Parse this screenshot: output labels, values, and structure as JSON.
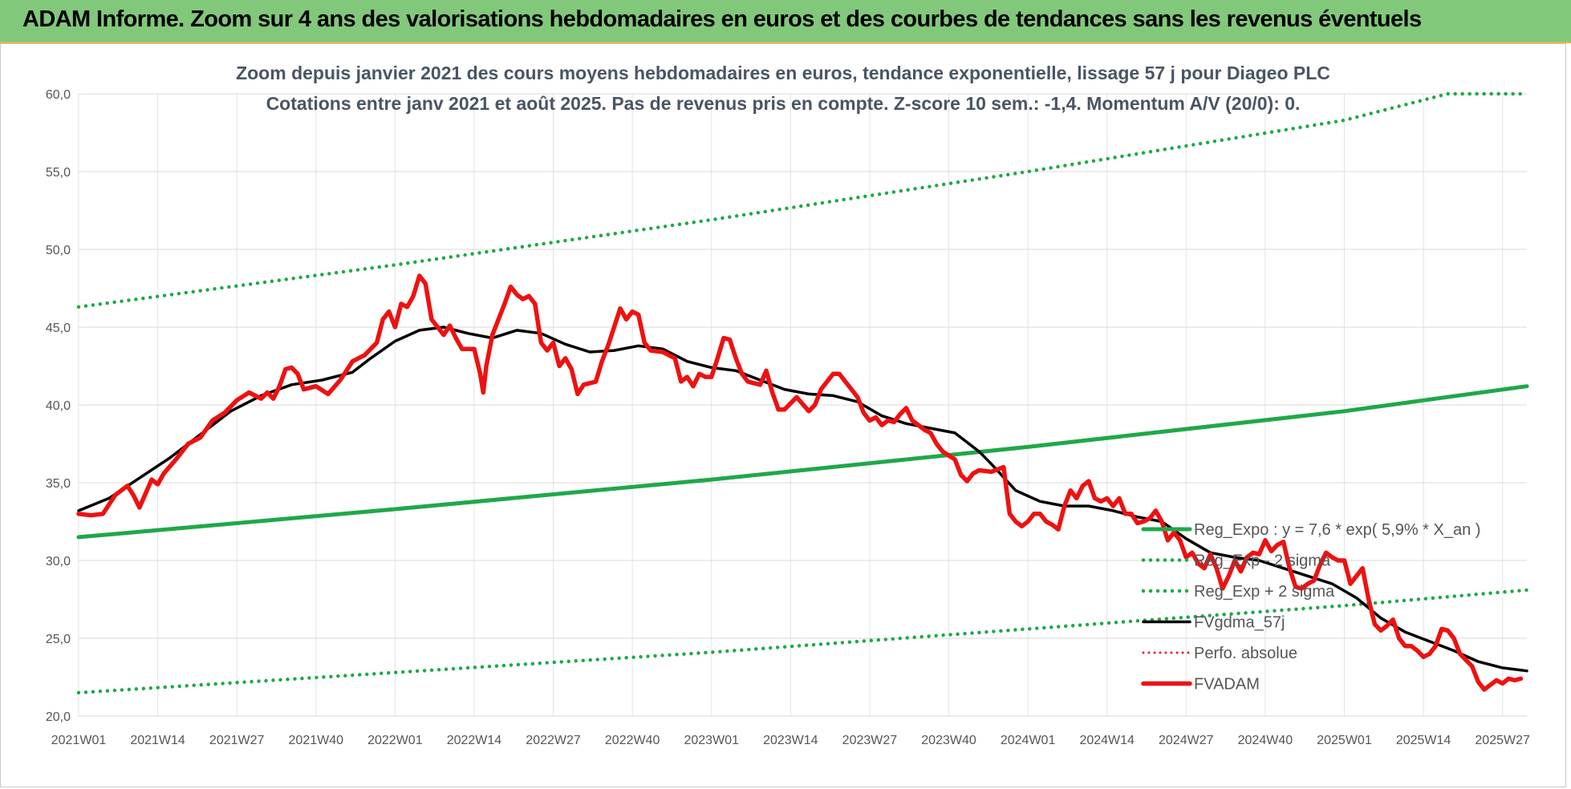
{
  "banner": {
    "title": "ADAM Informe. Zoom sur 4 ans des valorisations hebdomadaires en euros et des courbes de tendances sans les revenus éventuels"
  },
  "colors": {
    "banner": "#82c87a",
    "trend": "#1fa84a",
    "smooth": "#000000",
    "price": "#ee1111",
    "perfo": "#dd2222"
  },
  "chart_data": {
    "type": "line",
    "title": "Zoom depuis janvier 2021 des cours moyens hebdomadaires en euros, tendance exponentielle, lissage 57 j pour Diageo PLC",
    "subtitle": "Cotations entre janv 2021 et août 2025.  Pas de revenus pris en compte. Z-score 10 sem.: -1,4. Momentum A/V (20/0): 0.",
    "xlabel": "",
    "ylabel": "",
    "ylim": [
      20,
      60
    ],
    "y_ticks": [
      "20,0",
      "25,0",
      "30,0",
      "35,0",
      "40,0",
      "45,0",
      "50,0",
      "55,0",
      "60,0"
    ],
    "x_ticks": [
      "2021W01",
      "2021W14",
      "2021W27",
      "2021W40",
      "2022W01",
      "2022W14",
      "2022W27",
      "2022W40",
      "2023W01",
      "2023W14",
      "2023W27",
      "2023W40",
      "2024W01",
      "2024W14",
      "2024W27",
      "2024W40",
      "2025W01",
      "2025W14",
      "2025W27"
    ],
    "x_range_weeks": [
      0,
      238
    ],
    "grid": true,
    "legend_position": "bottom-right",
    "series": [
      {
        "name": "Reg_Expo : y = 7,6 * exp( 5,9% *  X_an )",
        "style": "solid",
        "color": "#1fa84a",
        "points": [
          [
            0,
            31.5
          ],
          [
            52,
            33.3
          ],
          [
            104,
            35.2
          ],
          [
            156,
            37.3
          ],
          [
            208,
            39.6
          ],
          [
            238,
            41.2
          ]
        ]
      },
      {
        "name": "Reg_Exp - 2 sigma",
        "style": "dotted",
        "color": "#1fa84a",
        "points": [
          [
            0,
            21.5
          ],
          [
            52,
            22.8
          ],
          [
            104,
            24.1
          ],
          [
            156,
            25.6
          ],
          [
            208,
            27.1
          ],
          [
            238,
            28.1
          ]
        ]
      },
      {
        "name": "Reg_Exp + 2 sigma",
        "style": "dotted",
        "color": "#1fa84a",
        "points": [
          [
            0,
            46.3
          ],
          [
            52,
            49.0
          ],
          [
            104,
            51.9
          ],
          [
            156,
            55.0
          ],
          [
            208,
            58.3
          ],
          [
            225,
            60.0
          ],
          [
            238,
            60.0
          ]
        ]
      },
      {
        "name": "FVgdma_57j",
        "style": "solid",
        "color": "#000000",
        "points": [
          [
            0,
            33.2
          ],
          [
            5,
            34.0
          ],
          [
            10,
            35.3
          ],
          [
            15,
            36.6
          ],
          [
            20,
            38.1
          ],
          [
            25,
            39.6
          ],
          [
            30,
            40.6
          ],
          [
            35,
            41.3
          ],
          [
            40,
            41.6
          ],
          [
            45,
            42.1
          ],
          [
            48,
            43.0
          ],
          [
            52,
            44.1
          ],
          [
            56,
            44.8
          ],
          [
            60,
            45.0
          ],
          [
            64,
            44.6
          ],
          [
            68,
            44.3
          ],
          [
            72,
            44.8
          ],
          [
            76,
            44.6
          ],
          [
            80,
            43.9
          ],
          [
            84,
            43.4
          ],
          [
            88,
            43.5
          ],
          [
            92,
            43.8
          ],
          [
            96,
            43.6
          ],
          [
            100,
            42.8
          ],
          [
            104,
            42.4
          ],
          [
            108,
            42.2
          ],
          [
            112,
            41.6
          ],
          [
            116,
            41.0
          ],
          [
            120,
            40.7
          ],
          [
            124,
            40.6
          ],
          [
            128,
            40.2
          ],
          [
            132,
            39.3
          ],
          [
            136,
            38.8
          ],
          [
            140,
            38.5
          ],
          [
            144,
            38.2
          ],
          [
            148,
            37.0
          ],
          [
            150,
            36.2
          ],
          [
            154,
            34.5
          ],
          [
            158,
            33.8
          ],
          [
            162,
            33.5
          ],
          [
            166,
            33.5
          ],
          [
            170,
            33.2
          ],
          [
            174,
            32.8
          ],
          [
            178,
            32.5
          ],
          [
            182,
            31.4
          ],
          [
            186,
            30.5
          ],
          [
            190,
            30.2
          ],
          [
            194,
            30.0
          ],
          [
            198,
            29.5
          ],
          [
            202,
            29.0
          ],
          [
            206,
            28.5
          ],
          [
            210,
            27.6
          ],
          [
            214,
            26.3
          ],
          [
            218,
            25.4
          ],
          [
            222,
            24.8
          ],
          [
            226,
            24.2
          ],
          [
            230,
            23.5
          ],
          [
            234,
            23.1
          ],
          [
            238,
            22.9
          ]
        ]
      },
      {
        "name": "Perfo. absolue",
        "style": "dotted",
        "color": "#dd2222",
        "points": []
      },
      {
        "name": "FVADAM",
        "style": "solid",
        "color": "#ee1111",
        "points": [
          [
            0,
            33.0
          ],
          [
            2,
            32.9
          ],
          [
            4,
            33.0
          ],
          [
            6,
            34.2
          ],
          [
            8,
            34.8
          ],
          [
            9,
            34.2
          ],
          [
            10,
            33.4
          ],
          [
            12,
            35.2
          ],
          [
            13,
            34.9
          ],
          [
            14,
            35.6
          ],
          [
            16,
            36.5
          ],
          [
            18,
            37.5
          ],
          [
            20,
            37.9
          ],
          [
            22,
            39.0
          ],
          [
            24,
            39.5
          ],
          [
            26,
            40.3
          ],
          [
            28,
            40.8
          ],
          [
            30,
            40.4
          ],
          [
            31,
            40.8
          ],
          [
            32,
            40.4
          ],
          [
            33,
            41.2
          ],
          [
            34,
            42.3
          ],
          [
            35,
            42.4
          ],
          [
            36,
            42.0
          ],
          [
            37,
            41.0
          ],
          [
            39,
            41.2
          ],
          [
            41,
            40.7
          ],
          [
            43,
            41.6
          ],
          [
            45,
            42.8
          ],
          [
            47,
            43.2
          ],
          [
            49,
            44.0
          ],
          [
            50,
            45.5
          ],
          [
            51,
            46.0
          ],
          [
            52,
            45.0
          ],
          [
            53,
            46.5
          ],
          [
            54,
            46.3
          ],
          [
            55,
            47.0
          ],
          [
            56,
            48.3
          ],
          [
            57,
            47.8
          ],
          [
            58,
            45.5
          ],
          [
            60,
            44.5
          ],
          [
            61,
            45.1
          ],
          [
            62,
            44.3
          ],
          [
            63,
            43.6
          ],
          [
            65,
            43.6
          ],
          [
            66,
            42.0
          ],
          [
            66.5,
            40.8
          ],
          [
            67,
            42.5
          ],
          [
            68,
            44.5
          ],
          [
            69,
            45.5
          ],
          [
            70,
            46.5
          ],
          [
            71,
            47.6
          ],
          [
            72,
            47.1
          ],
          [
            73,
            46.8
          ],
          [
            74,
            47.0
          ],
          [
            75,
            46.5
          ],
          [
            76,
            44.0
          ],
          [
            77,
            43.5
          ],
          [
            78,
            44.0
          ],
          [
            79,
            42.5
          ],
          [
            80,
            43.0
          ],
          [
            81,
            42.3
          ],
          [
            82,
            40.7
          ],
          [
            83,
            41.3
          ],
          [
            85,
            41.5
          ],
          [
            86,
            42.8
          ],
          [
            87,
            43.8
          ],
          [
            88,
            45.0
          ],
          [
            89,
            46.2
          ],
          [
            90,
            45.5
          ],
          [
            91,
            46.0
          ],
          [
            92,
            45.8
          ],
          [
            93,
            44.0
          ],
          [
            94,
            43.5
          ],
          [
            96,
            43.4
          ],
          [
            98,
            43.0
          ],
          [
            99,
            41.5
          ],
          [
            100,
            41.8
          ],
          [
            101,
            41.2
          ],
          [
            102,
            42.0
          ],
          [
            103,
            41.8
          ],
          [
            104,
            41.8
          ],
          [
            105,
            43.0
          ],
          [
            106,
            44.3
          ],
          [
            107,
            44.2
          ],
          [
            108,
            43.0
          ],
          [
            109,
            42.0
          ],
          [
            110,
            41.5
          ],
          [
            112,
            41.3
          ],
          [
            113,
            42.2
          ],
          [
            114,
            40.8
          ],
          [
            115,
            39.7
          ],
          [
            116,
            39.7
          ],
          [
            118,
            40.5
          ],
          [
            120,
            39.6
          ],
          [
            121,
            40.0
          ],
          [
            122,
            41.0
          ],
          [
            123,
            41.5
          ],
          [
            124,
            42.0
          ],
          [
            125,
            42.0
          ],
          [
            126,
            41.5
          ],
          [
            127,
            41.0
          ],
          [
            128,
            40.5
          ],
          [
            129,
            39.5
          ],
          [
            130,
            39.0
          ],
          [
            131,
            39.2
          ],
          [
            132,
            38.7
          ],
          [
            133,
            39.0
          ],
          [
            134,
            38.9
          ],
          [
            135,
            39.4
          ],
          [
            136,
            39.8
          ],
          [
            137,
            39.0
          ],
          [
            138,
            38.7
          ],
          [
            139,
            38.4
          ],
          [
            140,
            38.2
          ],
          [
            141,
            37.5
          ],
          [
            142,
            37.0
          ],
          [
            144,
            36.5
          ],
          [
            145,
            35.5
          ],
          [
            146,
            35.1
          ],
          [
            147,
            35.6
          ],
          [
            148,
            35.8
          ],
          [
            150,
            35.7
          ],
          [
            152,
            36.0
          ],
          [
            153,
            33.0
          ],
          [
            154,
            32.5
          ],
          [
            155,
            32.2
          ],
          [
            156,
            32.5
          ],
          [
            157,
            33.0
          ],
          [
            158,
            33.0
          ],
          [
            159,
            32.5
          ],
          [
            160,
            32.3
          ],
          [
            161,
            32.0
          ],
          [
            162,
            33.5
          ],
          [
            163,
            34.5
          ],
          [
            164,
            34.0
          ],
          [
            165,
            34.8
          ],
          [
            166,
            35.1
          ],
          [
            167,
            34.0
          ],
          [
            168,
            33.8
          ],
          [
            169,
            34.0
          ],
          [
            170,
            33.5
          ],
          [
            171,
            34.0
          ],
          [
            172,
            33.0
          ],
          [
            173,
            33.0
          ],
          [
            174,
            32.4
          ],
          [
            175,
            32.5
          ],
          [
            176,
            32.7
          ],
          [
            177,
            33.2
          ],
          [
            178,
            32.5
          ],
          [
            179,
            31.3
          ],
          [
            180,
            31.8
          ],
          [
            181,
            31.3
          ],
          [
            182,
            30.2
          ],
          [
            183,
            30.5
          ],
          [
            184,
            29.8
          ],
          [
            185,
            29.5
          ],
          [
            186,
            30.4
          ],
          [
            187,
            29.5
          ],
          [
            188,
            28.2
          ],
          [
            189,
            29.0
          ],
          [
            190,
            30.0
          ],
          [
            191,
            29.3
          ],
          [
            192,
            30.2
          ],
          [
            193,
            30.5
          ],
          [
            194,
            30.4
          ],
          [
            195,
            31.3
          ],
          [
            196,
            30.6
          ],
          [
            197,
            31.0
          ],
          [
            198,
            31.2
          ],
          [
            199,
            29.5
          ],
          [
            200,
            28.3
          ],
          [
            201,
            28.2
          ],
          [
            202,
            28.5
          ],
          [
            203,
            28.7
          ],
          [
            204,
            29.7
          ],
          [
            205,
            30.5
          ],
          [
            206,
            30.2
          ],
          [
            207,
            30.0
          ],
          [
            208,
            30.0
          ],
          [
            209,
            28.5
          ],
          [
            210,
            29.0
          ],
          [
            211,
            29.5
          ],
          [
            212,
            27.5
          ],
          [
            213,
            25.9
          ],
          [
            214,
            25.5
          ],
          [
            215,
            25.8
          ],
          [
            216,
            26.2
          ],
          [
            217,
            25.0
          ],
          [
            218,
            24.5
          ],
          [
            219,
            24.5
          ],
          [
            220,
            24.2
          ],
          [
            221,
            23.8
          ],
          [
            222,
            24.0
          ],
          [
            223,
            24.5
          ],
          [
            224,
            25.6
          ],
          [
            225,
            25.5
          ],
          [
            226,
            25.0
          ],
          [
            227,
            24.0
          ],
          [
            228,
            23.6
          ],
          [
            229,
            23.2
          ],
          [
            230,
            22.2
          ],
          [
            231,
            21.7
          ],
          [
            232,
            22.0
          ],
          [
            233,
            22.3
          ],
          [
            234,
            22.1
          ],
          [
            235,
            22.4
          ],
          [
            236,
            22.3
          ],
          [
            237,
            22.4
          ]
        ]
      }
    ]
  }
}
